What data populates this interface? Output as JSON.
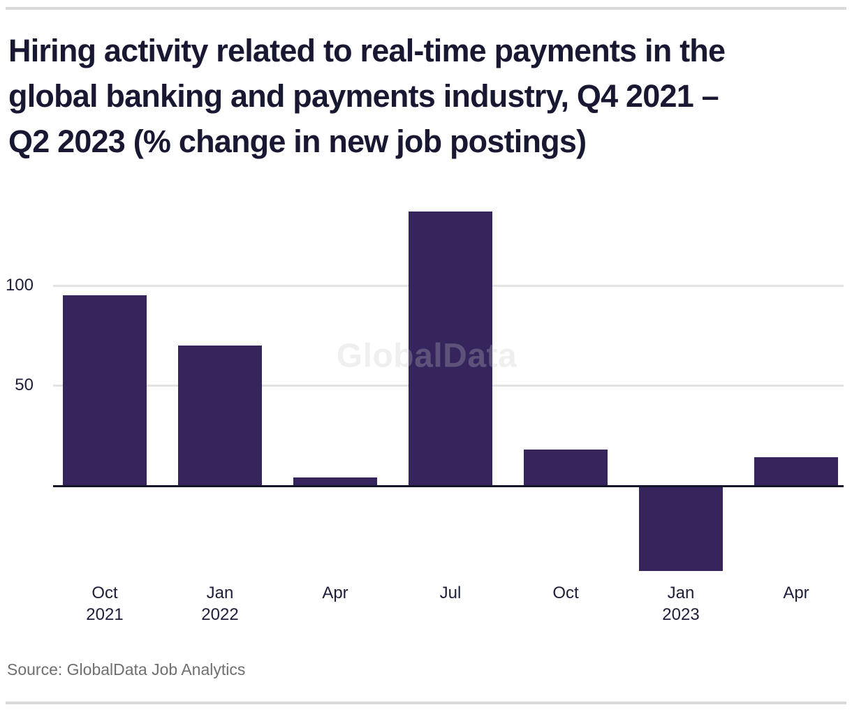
{
  "page": {
    "background": "#ffffff",
    "divider_color": "#d9d9d9"
  },
  "chart_data": {
    "type": "bar",
    "title": "Hiring activity related to real-time payments in the global banking and payments industry, Q4 2021 – Q2 2023 (% change in new job postings)",
    "title_lines": [
      "Hiring activity related to real-time payments in the",
      "global banking and payments industry, Q4 2021 –",
      "Q2 2023 (% change in new job postings)"
    ],
    "categories": [
      "Oct 2021",
      "Jan 2022",
      "Apr 2022",
      "Jul 2022",
      "Oct 2022",
      "Jan 2023",
      "Apr 2023"
    ],
    "x_tick_labels": [
      [
        "Oct",
        "2021"
      ],
      [
        "Jan",
        "2022"
      ],
      [
        "Apr"
      ],
      [
        "Jul"
      ],
      [
        "Oct"
      ],
      [
        "Jan",
        "2023"
      ],
      [
        "Apr"
      ]
    ],
    "values": [
      95,
      70,
      4,
      137,
      18,
      -43,
      14
    ],
    "ylabel": "% change in new job postings",
    "y_axis": {
      "ticks": [
        100,
        50
      ],
      "range": [
        -60,
        150
      ],
      "gridlines": true
    },
    "legend": "none",
    "bar_color": "#36245c",
    "title_color": "#181833",
    "tick_color": "#1e1e3a",
    "gridline_color": "#e3e3e3",
    "axis_line_color": "#14142b",
    "watermark": "GlobalData",
    "source": "Source: GlobalData Job Analytics",
    "source_color": "#6f6f6f"
  }
}
